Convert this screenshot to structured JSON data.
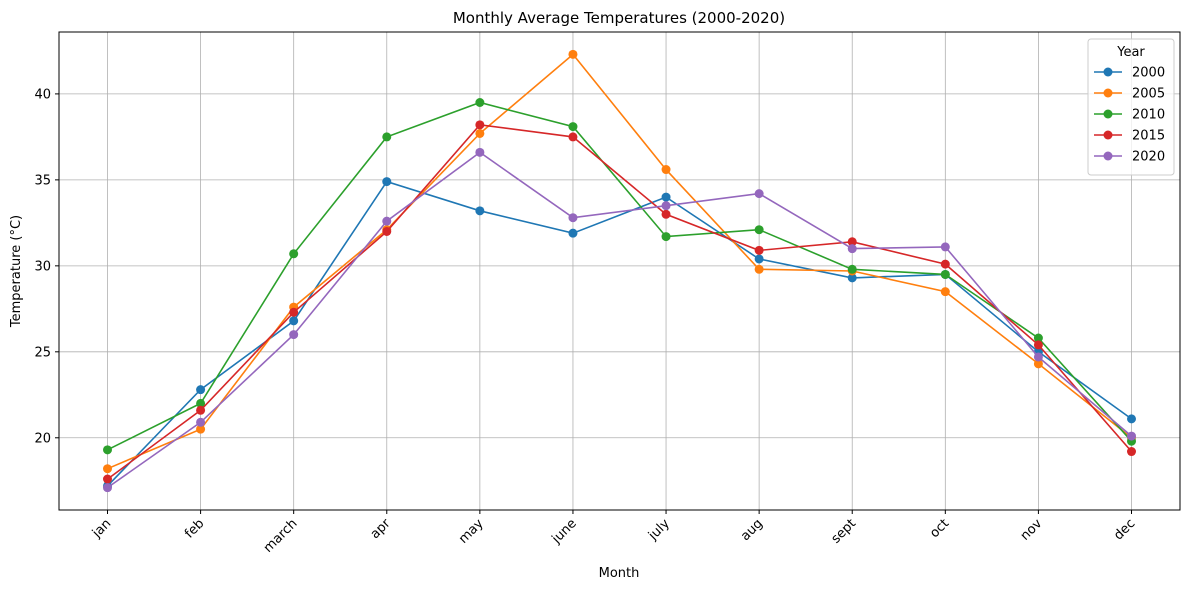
{
  "chart_data": {
    "type": "line",
    "title": "Monthly Average Temperatures (2000-2020)",
    "xlabel": "Month",
    "ylabel": "Temperature (°C)",
    "categories": [
      "jan",
      "feb",
      "march",
      "apr",
      "may",
      "june",
      "july",
      "aug",
      "sept",
      "oct",
      "nov",
      "dec"
    ],
    "ylim": [
      15.8,
      43.6
    ],
    "yticks": [
      20,
      25,
      30,
      35,
      40
    ],
    "grid": true,
    "legend": {
      "title": "Year",
      "position": "top-right"
    },
    "series": [
      {
        "name": "2000",
        "color": "#1f77b4",
        "values": [
          17.2,
          22.8,
          26.8,
          34.9,
          33.2,
          31.9,
          34.0,
          30.4,
          29.3,
          29.5,
          25.0,
          21.1
        ]
      },
      {
        "name": "2005",
        "color": "#ff7f0e",
        "values": [
          18.2,
          20.5,
          27.6,
          32.1,
          37.7,
          42.3,
          35.6,
          29.8,
          29.7,
          28.5,
          24.3,
          20.0
        ]
      },
      {
        "name": "2010",
        "color": "#2ca02c",
        "values": [
          19.3,
          22.0,
          30.7,
          37.5,
          39.5,
          38.1,
          31.7,
          32.1,
          29.8,
          29.5,
          25.8,
          19.8
        ]
      },
      {
        "name": "2015",
        "color": "#d62728",
        "values": [
          17.6,
          21.6,
          27.3,
          32.0,
          38.2,
          37.5,
          33.0,
          30.9,
          31.4,
          30.1,
          25.4,
          19.2
        ]
      },
      {
        "name": "2020",
        "color": "#9467bd",
        "values": [
          17.1,
          20.9,
          26.0,
          32.6,
          36.6,
          32.8,
          33.5,
          34.2,
          31.0,
          31.1,
          24.7,
          20.1
        ]
      }
    ]
  }
}
